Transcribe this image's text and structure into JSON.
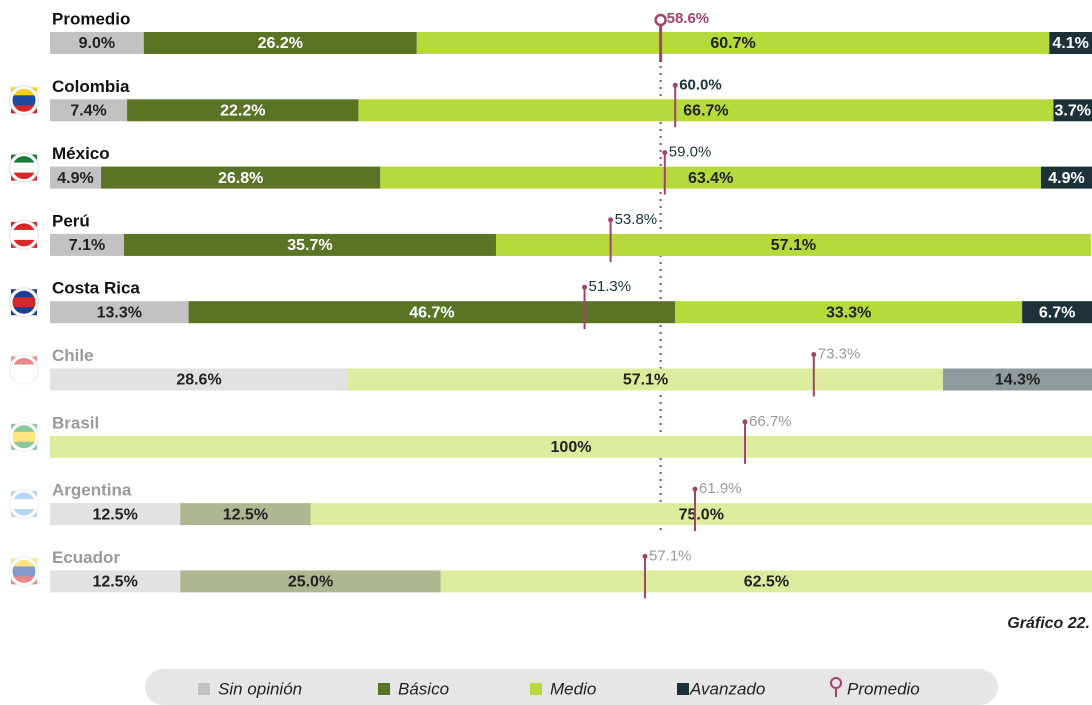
{
  "chart_data": {
    "type": "bar",
    "orientation": "horizontal",
    "stacked": true,
    "categories": [
      "Promedio",
      "Colombia",
      "México",
      "Perú",
      "Costa Rica",
      "Chile",
      "Brasil",
      "Argentina",
      "Ecuador"
    ],
    "faded": [
      false,
      false,
      false,
      false,
      false,
      true,
      true,
      true,
      true
    ],
    "xlim": [
      0,
      100
    ],
    "series": [
      {
        "name": "Sin opinión",
        "color": "#c2c2c2",
        "faded_color": "#e2e2e2",
        "values": [
          9.0,
          7.4,
          4.9,
          7.1,
          13.3,
          28.6,
          null,
          12.5,
          12.5
        ],
        "value_labels": [
          "9.0%",
          "7.4%",
          "4.9%",
          "7.1%",
          "13.3%",
          "28.6%",
          null,
          "12.5%",
          "12.5%"
        ]
      },
      {
        "name": "Básico",
        "color": "#5b7325",
        "faded_color": "#adb892",
        "values": [
          26.2,
          22.2,
          26.8,
          35.7,
          46.7,
          null,
          null,
          12.5,
          25.0
        ],
        "value_labels": [
          "26.2%",
          "22.2%",
          "26.8%",
          "35.7%",
          "46.7%",
          null,
          null,
          "12.5%",
          "25.0%"
        ]
      },
      {
        "name": "Medio",
        "color": "#b6d93c",
        "faded_color": "#dcec9f",
        "values": [
          60.7,
          66.7,
          63.4,
          57.1,
          33.3,
          57.1,
          100,
          75.0,
          62.5
        ],
        "value_labels": [
          "60.7%",
          "66.7%",
          "63.4%",
          "57.1%",
          "33.3%",
          "57.1%",
          "100%",
          "75.0%",
          "62.5%"
        ]
      },
      {
        "name": "Avanzado",
        "color": "#1c3238",
        "faded_color": "#8e9a9b",
        "values": [
          4.1,
          3.7,
          4.9,
          null,
          6.7,
          14.3,
          null,
          null,
          null
        ],
        "value_labels": [
          "4.1%",
          "3.7%",
          "4.9%",
          null,
          "6.7%",
          "14.3%",
          null,
          null,
          null
        ]
      }
    ],
    "markers": {
      "name": "Promedio",
      "color": "#a0446c",
      "values": [
        58.6,
        60.0,
        59.0,
        53.8,
        51.3,
        73.3,
        66.7,
        61.9,
        57.1
      ],
      "value_labels": [
        "58.6%",
        "60.0%",
        "59.0%",
        "53.8%",
        "51.3%",
        "73.3%",
        "66.7%",
        "61.9%",
        "57.1%"
      ]
    },
    "annotation": "Gráfico 22."
  }
}
